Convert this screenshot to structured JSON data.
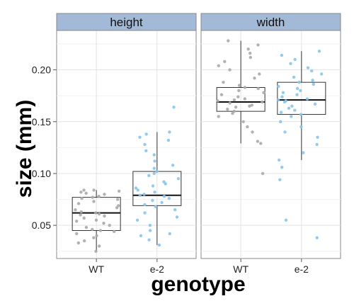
{
  "chart_data": {
    "type": "boxplot",
    "xlabel": "genotype",
    "ylabel": "size (mm)",
    "categories": [
      "WT",
      "e-2"
    ],
    "ylim": [
      0.018,
      0.238
    ],
    "yticks": [
      0.05,
      0.1,
      0.15,
      0.2
    ],
    "ytick_labels": [
      "0.05",
      "0.10",
      "0.15",
      "0.20"
    ],
    "colors": {
      "WT": "#aaaaaa",
      "e-2": "#87c5ec",
      "strip": "#a3b9d8",
      "box": "#333333"
    },
    "facets": [
      {
        "name": "height",
        "boxes": [
          {
            "category": "WT",
            "whisker_low": 0.025,
            "q1": 0.045,
            "median": 0.062,
            "q3": 0.077,
            "whisker_high": 0.084,
            "points": [
              0.025,
              0.03,
              0.033,
              0.035,
              0.038,
              0.04,
              0.042,
              0.044,
              0.045,
              0.046,
              0.048,
              0.05,
              0.052,
              0.054,
              0.055,
              0.057,
              0.059,
              0.06,
              0.061,
              0.062,
              0.063,
              0.065,
              0.067,
              0.069,
              0.071,
              0.073,
              0.075,
              0.076,
              0.077,
              0.078,
              0.08,
              0.081,
              0.082,
              0.083,
              0.084,
              0.084
            ]
          },
          {
            "category": "e-2",
            "whisker_low": 0.031,
            "q1": 0.069,
            "median": 0.079,
            "q3": 0.102,
            "whisker_high": 0.14,
            "points": [
              0.031,
              0.036,
              0.04,
              0.042,
              0.045,
              0.05,
              0.055,
              0.058,
              0.062,
              0.065,
              0.068,
              0.07,
              0.072,
              0.074,
              0.076,
              0.078,
              0.079,
              0.08,
              0.082,
              0.084,
              0.086,
              0.088,
              0.09,
              0.092,
              0.095,
              0.098,
              0.1,
              0.102,
              0.105,
              0.108,
              0.112,
              0.118,
              0.122,
              0.128,
              0.132,
              0.135,
              0.138,
              0.14,
              0.164
            ]
          }
        ]
      },
      {
        "name": "width",
        "boxes": [
          {
            "category": "WT",
            "whisker_low": 0.129,
            "q1": 0.16,
            "median": 0.169,
            "q3": 0.183,
            "whisker_high": 0.228,
            "points": [
              0.1,
              0.129,
              0.131,
              0.14,
              0.145,
              0.15,
              0.155,
              0.158,
              0.16,
              0.162,
              0.164,
              0.165,
              0.166,
              0.168,
              0.169,
              0.17,
              0.171,
              0.172,
              0.174,
              0.176,
              0.178,
              0.18,
              0.182,
              0.183,
              0.185,
              0.188,
              0.192,
              0.196,
              0.2,
              0.204,
              0.208,
              0.212,
              0.216,
              0.22,
              0.224,
              0.228
            ]
          },
          {
            "category": "e-2",
            "whisker_low": 0.113,
            "q1": 0.157,
            "median": 0.171,
            "q3": 0.188,
            "whisker_high": 0.218,
            "points": [
              0.038,
              0.055,
              0.094,
              0.106,
              0.113,
              0.12,
              0.128,
              0.135,
              0.14,
              0.145,
              0.15,
              0.155,
              0.157,
              0.159,
              0.161,
              0.163,
              0.165,
              0.167,
              0.169,
              0.17,
              0.171,
              0.172,
              0.174,
              0.176,
              0.178,
              0.18,
              0.182,
              0.184,
              0.186,
              0.188,
              0.19,
              0.193,
              0.196,
              0.199,
              0.202,
              0.206,
              0.21,
              0.214,
              0.218
            ]
          }
        ]
      }
    ]
  }
}
